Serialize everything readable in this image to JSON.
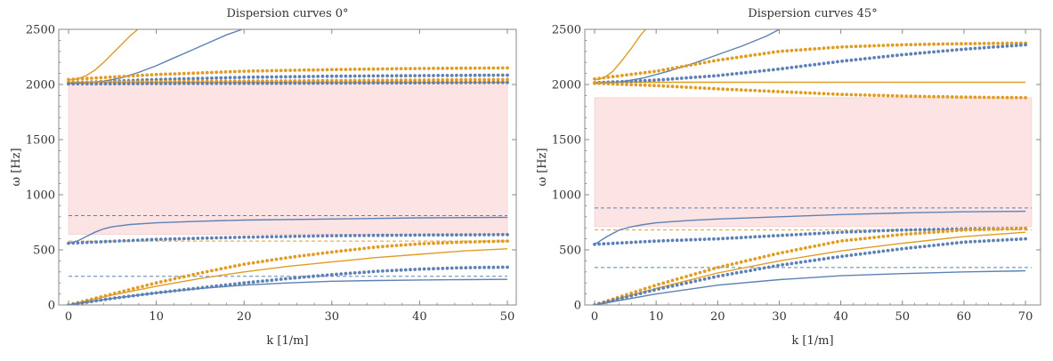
{
  "colors": {
    "blue": "#5e81b5",
    "orange": "#e19c24",
    "band": "#fce4e4",
    "frame": "#888888"
  },
  "chart_data": [
    {
      "type": "scatter",
      "title": "Dispersion curves 0°",
      "xlabel": "k [1/m]",
      "ylabel": "ω [Hz]",
      "xlim": [
        0,
        50
      ],
      "ylim": [
        0,
        2500
      ],
      "xticks": [
        0,
        10,
        20,
        30,
        40,
        50
      ],
      "yticks": [
        0,
        500,
        1000,
        1500,
        2000,
        2500
      ],
      "bandgaps": [
        {
          "from": 640,
          "to": 2020
        }
      ],
      "reference_lines": [
        {
          "color": "blue",
          "y": 810
        },
        {
          "color": "orange",
          "y": 580
        },
        {
          "color": "blue",
          "y": 260
        }
      ],
      "lines": [
        {
          "color": "orange",
          "x": [
            0,
            1,
            2,
            3,
            4,
            5,
            6,
            7,
            7.9
          ],
          "y": [
            2040,
            2050,
            2080,
            2130,
            2200,
            2280,
            2360,
            2440,
            2500
          ]
        },
        {
          "color": "blue",
          "x": [
            0,
            2,
            4,
            6,
            8,
            10,
            12,
            14,
            16,
            18,
            19.8
          ],
          "y": [
            2010,
            2015,
            2030,
            2060,
            2110,
            2170,
            2240,
            2310,
            2380,
            2450,
            2500
          ]
        },
        {
          "color": "orange",
          "x": [
            0,
            10,
            20,
            30,
            40,
            50
          ],
          "y": [
            2020,
            2020,
            2020,
            2020,
            2020,
            2020
          ]
        },
        {
          "color": "blue",
          "x": [
            0,
            1,
            2,
            3,
            4,
            5,
            7,
            10,
            15,
            20,
            30,
            40,
            50
          ],
          "y": [
            560,
            580,
            620,
            660,
            690,
            710,
            730,
            745,
            760,
            770,
            780,
            790,
            795
          ]
        },
        {
          "color": "orange",
          "x": [
            0,
            5,
            10,
            15,
            20,
            25,
            30,
            35,
            40,
            45,
            50
          ],
          "y": [
            0,
            90,
            170,
            240,
            300,
            350,
            390,
            430,
            460,
            490,
            510
          ]
        },
        {
          "color": "blue",
          "x": [
            0,
            5,
            10,
            15,
            20,
            25,
            30,
            35,
            40,
            45,
            50
          ],
          "y": [
            0,
            60,
            110,
            150,
            180,
            200,
            215,
            222,
            227,
            230,
            232
          ]
        }
      ],
      "dots": [
        {
          "color": "orange",
          "x": [
            0,
            10,
            20,
            30,
            40,
            50
          ],
          "y": [
            2045,
            2090,
            2120,
            2135,
            2145,
            2150
          ]
        },
        {
          "color": "blue",
          "x": [
            0,
            10,
            20,
            30,
            40,
            50
          ],
          "y": [
            2015,
            2045,
            2065,
            2075,
            2080,
            2085
          ]
        },
        {
          "color": "orange",
          "x": [
            0,
            10,
            20,
            30,
            40,
            50
          ],
          "y": [
            2020,
            2025,
            2030,
            2035,
            2040,
            2045
          ]
        },
        {
          "color": "blue",
          "x": [
            0,
            10,
            20,
            30,
            40,
            50
          ],
          "y": [
            2005,
            2008,
            2010,
            2012,
            2015,
            2018
          ]
        },
        {
          "color": "blue",
          "x": [
            0,
            10,
            20,
            30,
            40,
            50
          ],
          "y": [
            560,
            595,
            615,
            628,
            634,
            638
          ]
        },
        {
          "color": "orange",
          "x": [
            0,
            5,
            10,
            15,
            20,
            25,
            30,
            35,
            40,
            45,
            50
          ],
          "y": [
            0,
            100,
            200,
            290,
            370,
            430,
            480,
            525,
            555,
            570,
            580
          ]
        },
        {
          "color": "blue",
          "x": [
            0,
            5,
            10,
            15,
            20,
            25,
            30,
            35,
            40,
            45,
            50
          ],
          "y": [
            0,
            60,
            110,
            155,
            200,
            240,
            275,
            305,
            325,
            338,
            343
          ]
        }
      ]
    },
    {
      "type": "scatter",
      "title": "Dispersion curves 45°",
      "xlabel": "k [1/m]",
      "ylabel": "ω [Hz]",
      "xlim": [
        0,
        71
      ],
      "ylim": [
        0,
        2500
      ],
      "xticks": [
        0,
        10,
        20,
        30,
        40,
        50,
        60,
        70
      ],
      "yticks": [
        0,
        500,
        1000,
        1500,
        2000,
        2500
      ],
      "bandgaps": [
        {
          "from": 710,
          "to": 1880
        }
      ],
      "reference_lines": [
        {
          "color": "blue",
          "y": 880
        },
        {
          "color": "orange",
          "y": 680
        },
        {
          "color": "blue",
          "y": 340
        }
      ],
      "lines": [
        {
          "color": "orange",
          "x": [
            0,
            1.5,
            3,
            4.5,
            6,
            7.5,
            8.3
          ],
          "y": [
            2040,
            2060,
            2120,
            2220,
            2330,
            2450,
            2500
          ]
        },
        {
          "color": "blue",
          "x": [
            0,
            4,
            8,
            12,
            16,
            20,
            24,
            28,
            30
          ],
          "y": [
            2010,
            2020,
            2060,
            2120,
            2190,
            2270,
            2350,
            2440,
            2500
          ]
        },
        {
          "color": "orange",
          "x": [
            0,
            10,
            20,
            30,
            40,
            50,
            60,
            70
          ],
          "y": [
            2020,
            2020,
            2020,
            2020,
            2020,
            2020,
            2020,
            2020
          ]
        },
        {
          "color": "blue",
          "x": [
            0,
            2,
            4,
            6,
            8,
            10,
            15,
            20,
            30,
            40,
            50,
            60,
            70
          ],
          "y": [
            550,
            620,
            680,
            710,
            730,
            745,
            765,
            780,
            800,
            820,
            835,
            845,
            850
          ]
        },
        {
          "color": "orange",
          "x": [
            0,
            10,
            20,
            30,
            40,
            50,
            60,
            70
          ],
          "y": [
            0,
            150,
            290,
            400,
            490,
            560,
            620,
            660
          ]
        },
        {
          "color": "blue",
          "x": [
            0,
            10,
            20,
            30,
            40,
            50,
            60,
            70
          ],
          "y": [
            0,
            100,
            180,
            230,
            265,
            285,
            300,
            310
          ]
        }
      ],
      "dots": [
        {
          "color": "orange",
          "x": [
            0,
            10,
            20,
            30,
            40,
            50,
            60,
            70
          ],
          "y": [
            2050,
            2120,
            2220,
            2300,
            2340,
            2360,
            2370,
            2375
          ]
        },
        {
          "color": "blue",
          "x": [
            0,
            10,
            20,
            30,
            40,
            50,
            60,
            70
          ],
          "y": [
            2015,
            2040,
            2080,
            2140,
            2210,
            2270,
            2320,
            2360
          ]
        },
        {
          "color": "orange",
          "x": [
            0,
            10,
            20,
            30,
            40,
            50,
            60,
            70
          ],
          "y": [
            2010,
            1990,
            1960,
            1935,
            1910,
            1895,
            1885,
            1880
          ]
        },
        {
          "color": "blue",
          "x": [
            0,
            10,
            20,
            30,
            40,
            50,
            60,
            70
          ],
          "y": [
            550,
            580,
            600,
            630,
            660,
            680,
            690,
            695
          ]
        },
        {
          "color": "orange",
          "x": [
            0,
            10,
            20,
            30,
            40,
            50,
            60,
            70
          ],
          "y": [
            0,
            180,
            340,
            470,
            580,
            640,
            680,
            695
          ]
        },
        {
          "color": "blue",
          "x": [
            0,
            10,
            20,
            30,
            40,
            50,
            60,
            70
          ],
          "y": [
            0,
            140,
            260,
            360,
            440,
            510,
            570,
            600
          ]
        }
      ]
    }
  ]
}
